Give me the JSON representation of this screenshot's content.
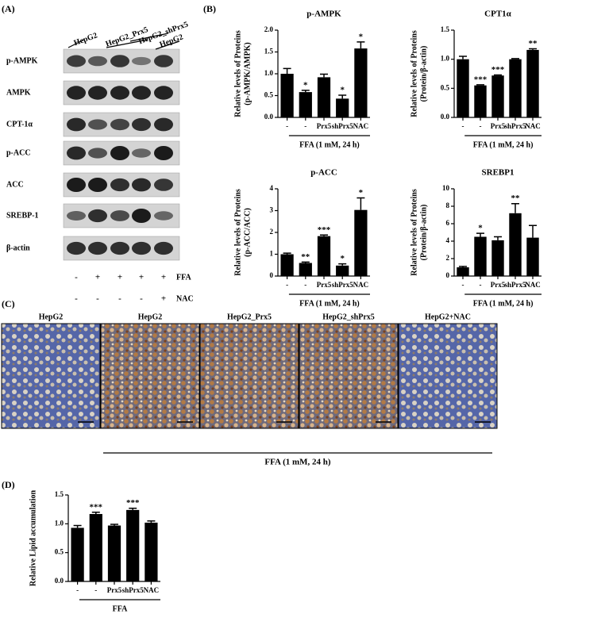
{
  "panel_labels": [
    "(A)",
    "(B)",
    "(C)",
    "(D)"
  ],
  "blot": {
    "lanes": [
      "HepG2",
      "HepG2_Prx5",
      "HepG2_shPrx5",
      "HepG2"
    ],
    "rows": [
      "p-AMPK",
      "AMPK",
      "CPT-1α",
      "p-ACC",
      "ACC",
      "SREBP-1",
      "β-actin"
    ],
    "treatments": [
      {
        "name": "FFA",
        "signs": [
          "-",
          "+",
          "+",
          "+",
          "+"
        ]
      },
      {
        "name": "NAC",
        "signs": [
          "-",
          "-",
          "-",
          "-",
          "+"
        ]
      }
    ]
  },
  "micrographs": {
    "titles": [
      "HepG2",
      "HepG2",
      "HepG2_Prx5",
      "HepG2_shPrx5",
      "HepG2+NAC"
    ],
    "treatment": "FFA (1 mM, 24 h)"
  },
  "chart_data": [
    {
      "type": "bar",
      "title": "p-AMPK",
      "ylabel": [
        "Relative levels of Proteins",
        "(p-AMPK/AMPK)"
      ],
      "categories": [
        "-",
        "-",
        "Prx5",
        "shPrx5",
        "NAC"
      ],
      "group_label": "FFA (1 mM, 24 h)",
      "values": [
        1.0,
        0.58,
        0.92,
        0.43,
        1.58
      ],
      "errors": [
        0.12,
        0.04,
        0.07,
        0.08,
        0.15
      ],
      "stars": [
        null,
        "*",
        null,
        "*",
        "*"
      ],
      "color": "#000000",
      "ylim": [
        0,
        2
      ],
      "yticks": [
        {
          "value": 0,
          "label": "0.0"
        },
        0.5,
        {
          "value": 1,
          "label": "1.0"
        },
        1.5,
        {
          "value": 2,
          "label": "2.0"
        }
      ]
    },
    {
      "type": "bar",
      "title": "CPT1α",
      "ylabel": [
        "Relative levels of Proteins",
        "(Protein/β-actin)"
      ],
      "categories": [
        "-",
        "-",
        "Prx5",
        "shPrx5",
        "NAC"
      ],
      "group_label": "FFA (1 mM, 24 h)",
      "values": [
        1.0,
        0.55,
        0.72,
        1.0,
        1.16
      ],
      "errors": [
        0.05,
        0.01,
        0.01,
        0.01,
        0.02
      ],
      "stars": [
        null,
        "***",
        "***",
        null,
        "**"
      ],
      "color": "#000000",
      "ylim": [
        0,
        1.5
      ],
      "yticks": [
        {
          "value": 0,
          "label": "0.0"
        },
        0.5,
        {
          "value": 1,
          "label": "1.0"
        },
        1.5
      ]
    },
    {
      "type": "bar",
      "title": "p-ACC",
      "ylabel": [
        "Relative levels of Proteins",
        "(p-ACC/ACC)"
      ],
      "categories": [
        "-",
        "-",
        "Prx5",
        "shPrx5",
        "NAC"
      ],
      "group_label": "FFA (1 mM, 24 h)",
      "values": [
        1.0,
        0.6,
        1.83,
        0.48,
        3.03
      ],
      "errors": [
        0.05,
        0.04,
        0.05,
        0.08,
        0.55
      ],
      "stars": [
        null,
        "**",
        "***",
        "*",
        "*"
      ],
      "color": "#000000",
      "ylim": [
        0,
        4
      ],
      "yticks": [
        0,
        1,
        2,
        3,
        4
      ]
    },
    {
      "type": "bar",
      "title": "SREBP1",
      "ylabel": [
        "Relative levels of Proteins",
        "(Protein/β-actin)"
      ],
      "categories": [
        "-",
        "-",
        "Prx5",
        "shPrx5",
        "NAC"
      ],
      "group_label": "FFA (1 mM, 24 h)",
      "values": [
        1.0,
        4.5,
        4.1,
        7.2,
        4.4
      ],
      "errors": [
        0.1,
        0.4,
        0.4,
        1.1,
        1.4
      ],
      "stars": [
        null,
        "*",
        null,
        "**",
        null
      ],
      "color": "#000000",
      "ylim": [
        0,
        10
      ],
      "yticks": [
        0,
        2,
        4,
        6,
        8,
        10
      ]
    },
    {
      "type": "bar",
      "ylabel": [
        "Relative Lipid accumulation"
      ],
      "categories": [
        "-",
        "-",
        "Prx5",
        "shPrx5",
        "NAC"
      ],
      "group_label": "FFA",
      "values": [
        0.93,
        1.17,
        0.97,
        1.24,
        1.02
      ],
      "errors": [
        0.04,
        0.03,
        0.02,
        0.03,
        0.03
      ],
      "stars": [
        null,
        "***",
        null,
        "***",
        null
      ],
      "color": "#000000",
      "ylim": [
        0,
        1.5
      ],
      "yticks": [
        {
          "value": 0,
          "label": "0.0"
        },
        0.5,
        {
          "value": 1,
          "label": "1.0"
        },
        1.5
      ]
    }
  ]
}
